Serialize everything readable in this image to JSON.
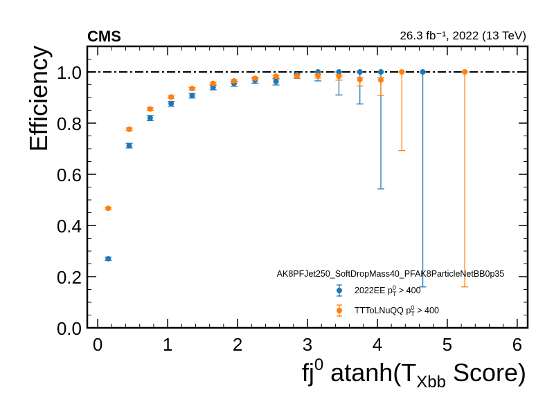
{
  "chart_data": {
    "type": "scatter",
    "experiment_label": "CMS",
    "lumi_label": "26.3 fb⁻¹, 2022 (13 TeV)",
    "xlabel_main": "fj",
    "xlabel_sup": "0",
    "xlabel_mid": " atanh(T",
    "xlabel_sub": "Xbb",
    "xlabel_end": " Score)",
    "ylabel": "Efficiency",
    "xlim": [
      -0.15,
      6.15
    ],
    "ylim": [
      0.0,
      1.1
    ],
    "xticks": [
      0,
      1,
      2,
      3,
      4,
      5,
      6
    ],
    "xtick_labels": [
      "0",
      "1",
      "2",
      "3",
      "4",
      "5",
      "6"
    ],
    "yticks": [
      0.0,
      0.2,
      0.4,
      0.6,
      0.8,
      1.0
    ],
    "ytick_labels": [
      "0.0",
      "0.2",
      "0.4",
      "0.6",
      "0.8",
      "1.0"
    ],
    "reference_line": 1.0,
    "legend": {
      "placement": "lower-right",
      "title": "AK8PFJet250_SoftDropMass40_PFAK8ParticleNetBB0p35"
    },
    "series": [
      {
        "name": "2022EE",
        "label_suffix": " > 400",
        "label_p": "p",
        "label_sub": "T",
        "label_sup": "0",
        "color": "#1f77b4",
        "x": [
          0.15,
          0.45,
          0.75,
          1.05,
          1.35,
          1.65,
          1.95,
          2.25,
          2.55,
          2.85,
          3.15,
          3.45,
          3.75,
          4.05,
          4.65
        ],
        "y": [
          0.27,
          0.712,
          0.82,
          0.876,
          0.908,
          0.94,
          0.955,
          0.968,
          0.963,
          0.99,
          1.0,
          1.0,
          1.0,
          1.0,
          1.0
        ],
        "yerr_low": [
          0.006,
          0.009,
          0.01,
          0.01,
          0.01,
          0.01,
          0.011,
          0.012,
          0.014,
          0.015,
          0.035,
          0.09,
          0.125,
          0.457,
          0.84
        ],
        "yerr_high": [
          0.006,
          0.009,
          0.01,
          0.009,
          0.008,
          0.008,
          0.008,
          0.008,
          0.01,
          0.005,
          0.0,
          0.0,
          0.0,
          0.0,
          0.0
        ]
      },
      {
        "name": "TTToLNuQQ",
        "label_suffix": " > 400",
        "label_p": "p",
        "label_sub": "T",
        "label_sup": "0",
        "color": "#ff7f0e",
        "x": [
          0.15,
          0.45,
          0.75,
          1.05,
          1.35,
          1.65,
          1.95,
          2.25,
          2.55,
          2.85,
          3.15,
          3.45,
          3.75,
          4.05,
          4.35,
          5.25
        ],
        "y": [
          0.467,
          0.776,
          0.855,
          0.902,
          0.935,
          0.955,
          0.965,
          0.975,
          0.983,
          0.984,
          0.986,
          0.983,
          0.97,
          0.968,
          1.0,
          1.0
        ],
        "yerr_low": [
          0.004,
          0.005,
          0.005,
          0.005,
          0.005,
          0.005,
          0.006,
          0.006,
          0.007,
          0.008,
          0.01,
          0.015,
          0.025,
          0.06,
          0.307,
          0.84
        ],
        "yerr_high": [
          0.004,
          0.005,
          0.005,
          0.005,
          0.004,
          0.004,
          0.004,
          0.004,
          0.004,
          0.004,
          0.005,
          0.006,
          0.008,
          0.01,
          0.0,
          0.0
        ]
      }
    ]
  }
}
